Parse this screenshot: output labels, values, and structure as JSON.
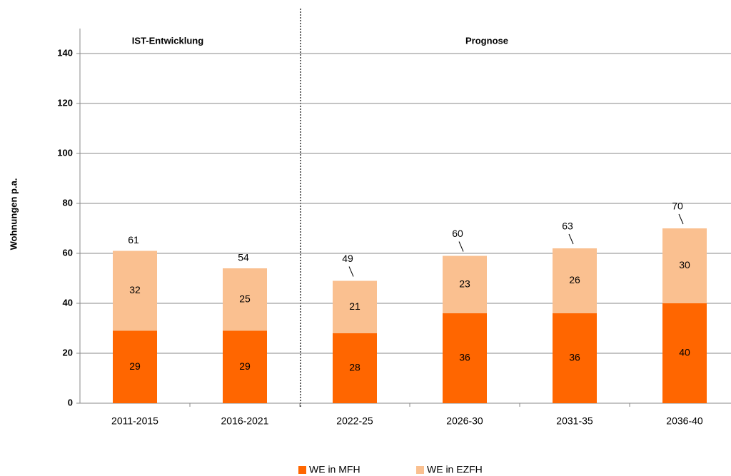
{
  "chart_data": {
    "type": "bar",
    "stacked": true,
    "y_label": "Wohnungen p.a.",
    "annotations": [
      "IST-Entwicklung",
      "Prognose"
    ],
    "categories": [
      "2011-2015",
      "2016-2021",
      "2022-25",
      "2026-30",
      "2031-35",
      "2036-40"
    ],
    "series": [
      {
        "name": "WE in MFH",
        "color": "#ff6600",
        "values": [
          29,
          29,
          28,
          36,
          36,
          40
        ]
      },
      {
        "name": "WE in EZFH",
        "color": "#fac090",
        "values": [
          32,
          25,
          21,
          23,
          26,
          30
        ]
      }
    ],
    "totals": [
      61,
      54,
      49,
      60,
      63,
      70
    ],
    "ylim": [
      0,
      150
    ],
    "yticks": [
      0,
      20,
      40,
      60,
      80,
      100,
      120,
      140
    ],
    "grid": true
  }
}
